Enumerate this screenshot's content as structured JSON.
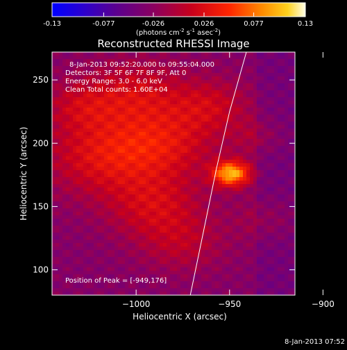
{
  "colorbar": {
    "tick_labels": [
      "-0.13",
      "-0.077",
      "-0.026",
      "0.026",
      "0.077",
      "0.13"
    ],
    "tick_values": [
      -0.13,
      -0.077,
      -0.026,
      0.026,
      0.077,
      0.13
    ],
    "range": [
      -0.13,
      0.13
    ],
    "unit_prefix": "(photons cm",
    "unit_exp1": "-2",
    "unit_mid": " s",
    "unit_exp2": "-1",
    "unit_mid2": " asec",
    "unit_exp3": "-2",
    "unit_suffix": ")"
  },
  "chart_data": {
    "type": "heatmap",
    "title": "Reconstructed RHESSI Image",
    "xlabel": "Heliocentric X (arcsec)",
    "ylabel": "Heliocentric Y (arcsec)",
    "xlim": [
      -1045,
      -915
    ],
    "ylim": [
      80,
      272
    ],
    "x_ticks": [
      -1000,
      -950,
      -900
    ],
    "x_tick_labels": [
      "−1000",
      "−950",
      "−900"
    ],
    "y_ticks": [
      100,
      150,
      200,
      250
    ],
    "y_tick_labels": [
      "100",
      "150",
      "200",
      "250"
    ],
    "info_lines": [
      "8-Jan-2013 09:52:20.000 to 09:55:04.000",
      "Detectors: 3F 5F 6F 7F 8F 9F, Att 0",
      "Energy Range: 3.0 - 6.0 keV",
      "Clean    Total counts: 1.60E+04"
    ],
    "peak_label": "Position of Peak = [-949,176]",
    "peak": {
      "x": -949,
      "y": 176
    },
    "limb_points": [
      [
        -971,
        80
      ],
      [
        -964,
        130
      ],
      [
        -957,
        180
      ],
      [
        -950,
        225
      ],
      [
        -941,
        272
      ]
    ],
    "emission_blobs": [
      {
        "x": -949,
        "y": 176,
        "sigma": 7,
        "amp": 0.13
      },
      {
        "x": -1018,
        "y": 190,
        "sigma": 22,
        "amp": 0.055
      },
      {
        "x": -985,
        "y": 200,
        "sigma": 20,
        "amp": 0.05
      },
      {
        "x": -1000,
        "y": 240,
        "sigma": 18,
        "amp": 0.045
      },
      {
        "x": -960,
        "y": 230,
        "sigma": 15,
        "amp": 0.04
      },
      {
        "x": -990,
        "y": 150,
        "sigma": 18,
        "amp": 0.045
      },
      {
        "x": -1030,
        "y": 230,
        "sigma": 14,
        "amp": 0.035
      },
      {
        "x": -975,
        "y": 120,
        "sigma": 16,
        "amp": 0.03
      },
      {
        "x": -930,
        "y": 140,
        "sigma": 12,
        "amp": 0.02
      },
      {
        "x": -935,
        "y": 205,
        "sigma": 10,
        "amp": 0.022
      }
    ]
  },
  "footer": {
    "date": "8-Jan-2013 07:52"
  }
}
